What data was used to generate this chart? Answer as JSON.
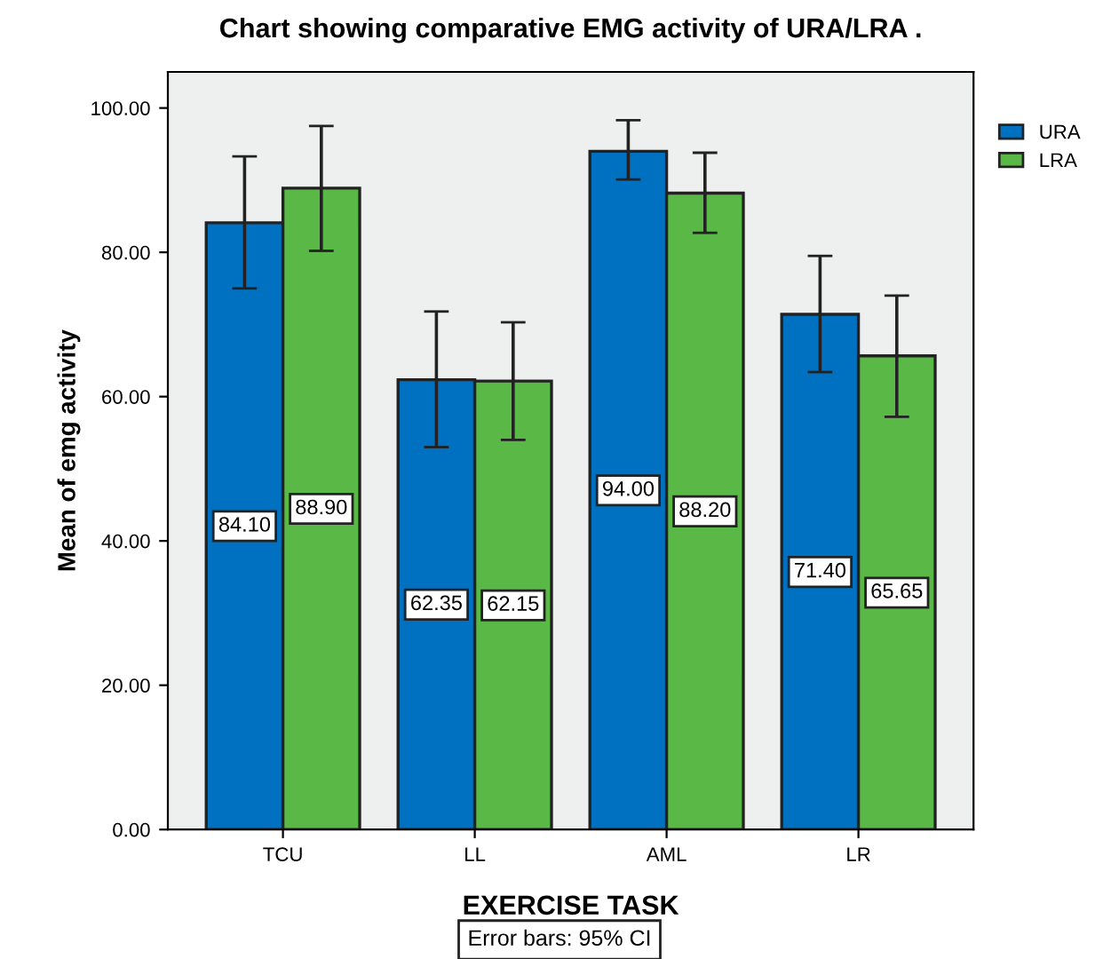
{
  "chart_data": {
    "type": "bar",
    "title": "Chart showing comparative EMG activity of URA/LRA .",
    "xlabel": "EXERCISE TASK",
    "ylabel": "Mean of emg activity",
    "categories": [
      "TCU",
      "LL",
      "AML",
      "LR"
    ],
    "series": [
      {
        "name": "URA",
        "color": "#0070c0",
        "values": [
          84.1,
          62.35,
          94.0,
          71.4
        ],
        "value_labels": [
          "84.10",
          "62.35",
          "94.00",
          "71.40"
        ],
        "errors": [
          [
            75.0,
            93.3
          ],
          [
            53.0,
            71.8
          ],
          [
            90.1,
            98.3
          ],
          [
            63.4,
            79.5
          ]
        ]
      },
      {
        "name": "LRA",
        "color": "#5ab946",
        "values": [
          88.9,
          62.15,
          88.2,
          65.65
        ],
        "value_labels": [
          "88.90",
          "62.15",
          "88.20",
          "65.65"
        ],
        "errors": [
          [
            80.2,
            97.5
          ],
          [
            54.0,
            70.3
          ],
          [
            82.7,
            93.8
          ],
          [
            57.2,
            74.0
          ]
        ]
      }
    ],
    "ylim": [
      0,
      105
    ],
    "yticks": [
      {
        "value": 0,
        "label": "0.00"
      },
      {
        "value": 20,
        "label": "20.00"
      },
      {
        "value": 40,
        "label": "40.00"
      },
      {
        "value": 60,
        "label": "60.00"
      },
      {
        "value": 80,
        "label": "80.00"
      },
      {
        "value": 100,
        "label": "100.00"
      }
    ],
    "legend": "right",
    "annotations": [
      "Error bars: 95% CI"
    ]
  }
}
